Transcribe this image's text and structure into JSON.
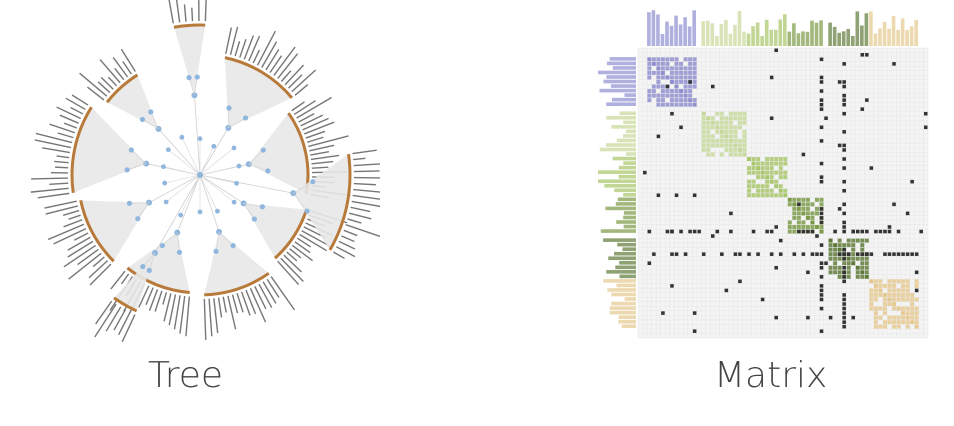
{
  "labels": {
    "tree": "Tree",
    "matrix": "Matrix"
  },
  "colors": {
    "tree_node": "#8fb6dd",
    "tree_arc": "#b87a3a",
    "tree_label": "#555555",
    "tree_fan": "#e8e8e8",
    "matrix_grid": "#e3e3e3",
    "matrix_bg": "#f4f4f4",
    "cluster_colors": [
      "#8f8fd0",
      "#c7d99a",
      "#a8c66a",
      "#7a9a45",
      "#5f7a38",
      "#e6c98f"
    ],
    "matrix_dot": "#333333"
  }
}
